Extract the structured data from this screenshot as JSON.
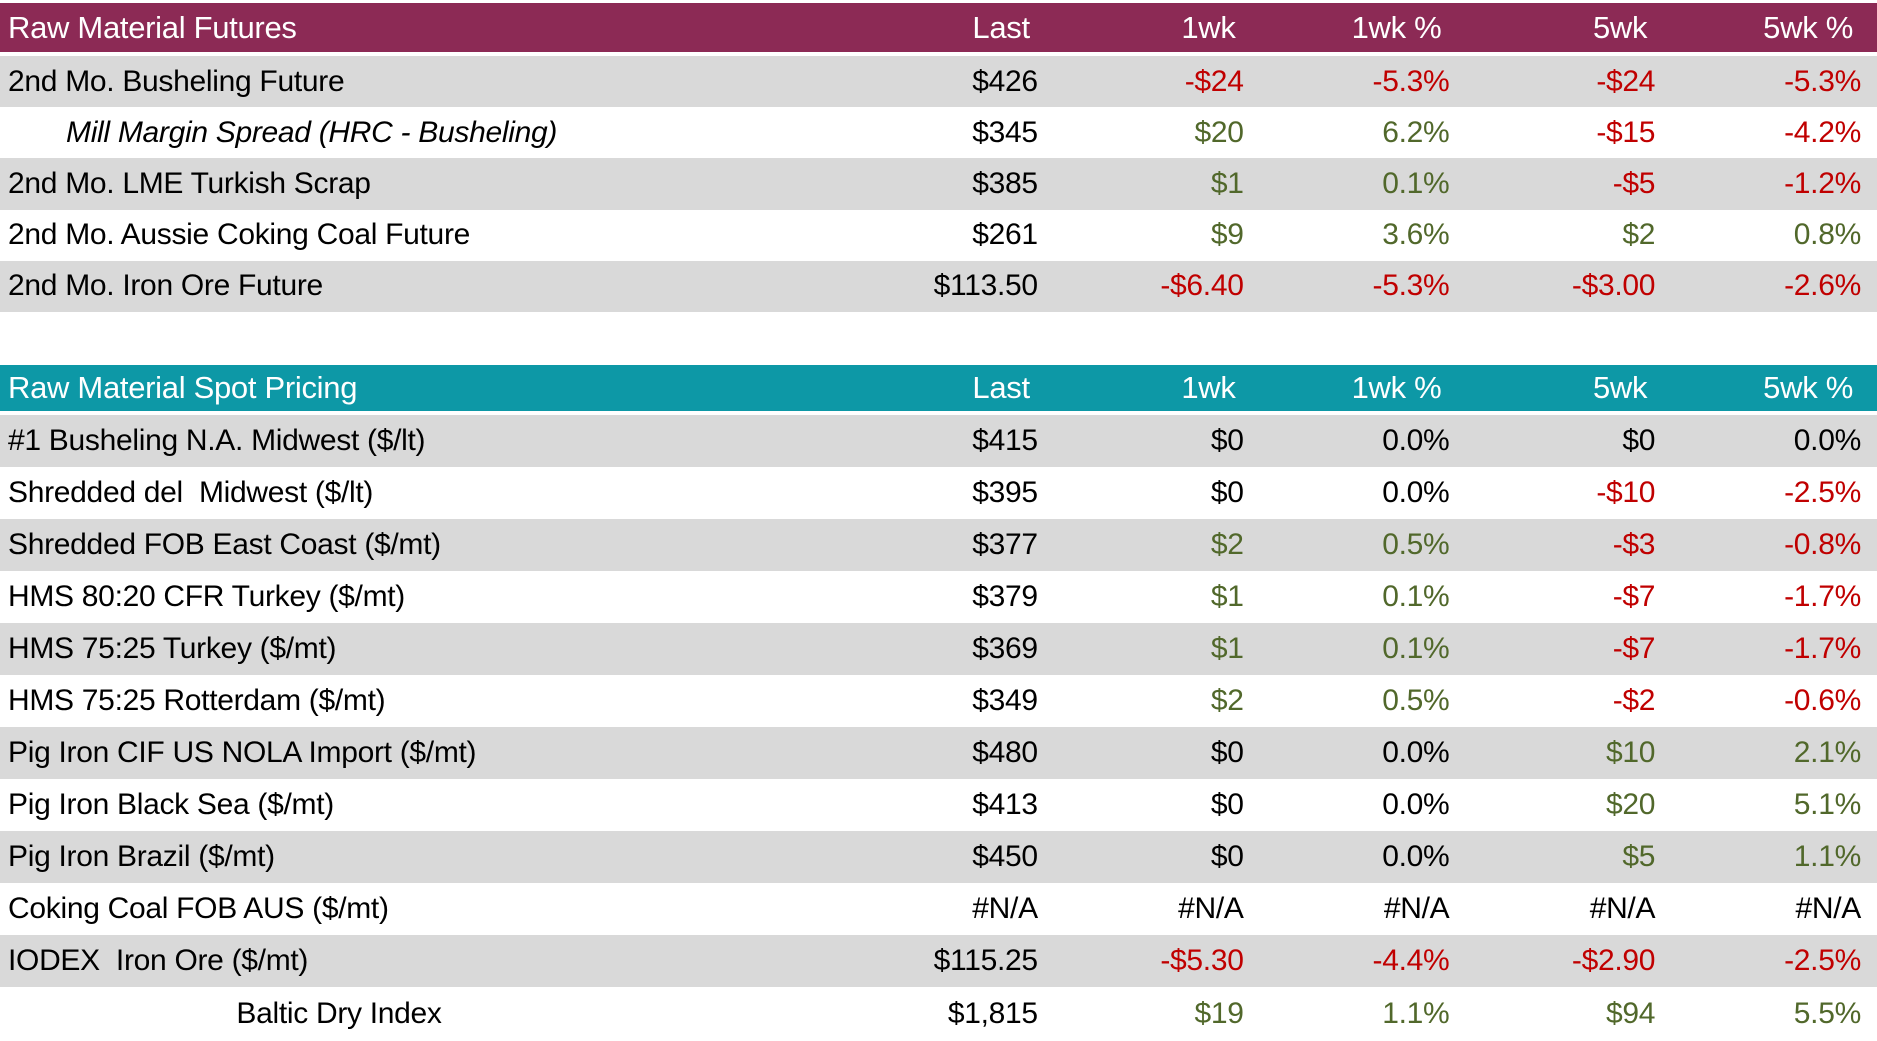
{
  "colors": {
    "futures_header_bg": "#8C2A55",
    "spot_header_bg": "#0D98A6",
    "alt_row_bg": "#D9D9D9",
    "positive_text": "#51682B",
    "negative_text": "#C00000",
    "neutral_text": "#000000",
    "header_text": "#FFFFFF"
  },
  "columns": [
    "Last",
    "1wk",
    "1wk %",
    "5wk",
    "5wk %"
  ],
  "futures": {
    "title": "Raw Material Futures",
    "rows": [
      {
        "label": "2nd Mo. Busheling Future",
        "style": "normal",
        "values": [
          {
            "t": "$426",
            "c": "plain"
          },
          {
            "t": "-$24",
            "c": "neg"
          },
          {
            "t": "-5.3%",
            "c": "neg"
          },
          {
            "t": "-$24",
            "c": "neg"
          },
          {
            "t": "-5.3%",
            "c": "neg"
          }
        ]
      },
      {
        "label": "Mill Margin Spread (HRC - Busheling)",
        "style": "indent-italic",
        "values": [
          {
            "t": "$345",
            "c": "plain"
          },
          {
            "t": "$20",
            "c": "pos"
          },
          {
            "t": "6.2%",
            "c": "pos"
          },
          {
            "t": "-$15",
            "c": "neg"
          },
          {
            "t": "-4.2%",
            "c": "neg"
          }
        ]
      },
      {
        "label": "2nd Mo. LME Turkish Scrap",
        "style": "normal",
        "values": [
          {
            "t": "$385",
            "c": "plain"
          },
          {
            "t": "$1",
            "c": "pos"
          },
          {
            "t": "0.1%",
            "c": "pos"
          },
          {
            "t": "-$5",
            "c": "neg"
          },
          {
            "t": "-1.2%",
            "c": "neg"
          }
        ]
      },
      {
        "label": "2nd Mo. Aussie Coking Coal Future",
        "style": "normal",
        "values": [
          {
            "t": "$261",
            "c": "plain"
          },
          {
            "t": "$9",
            "c": "pos"
          },
          {
            "t": "3.6%",
            "c": "pos"
          },
          {
            "t": "$2",
            "c": "pos"
          },
          {
            "t": "0.8%",
            "c": "pos"
          }
        ]
      },
      {
        "label": "2nd Mo. Iron Ore Future",
        "style": "normal",
        "values": [
          {
            "t": "$113.50",
            "c": "plain"
          },
          {
            "t": "-$6.40",
            "c": "neg"
          },
          {
            "t": "-5.3%",
            "c": "neg"
          },
          {
            "t": "-$3.00",
            "c": "neg"
          },
          {
            "t": "-2.6%",
            "c": "neg"
          }
        ]
      }
    ]
  },
  "spot": {
    "title": "Raw Material Spot Pricing",
    "rows": [
      {
        "label": "#1 Busheling N.A. Midwest ($/lt)",
        "style": "normal",
        "values": [
          {
            "t": "$415",
            "c": "plain"
          },
          {
            "t": "$0",
            "c": "plain"
          },
          {
            "t": "0.0%",
            "c": "plain"
          },
          {
            "t": "$0",
            "c": "plain"
          },
          {
            "t": "0.0%",
            "c": "plain"
          }
        ]
      },
      {
        "label": "Shredded del  Midwest ($/lt)",
        "style": "normal",
        "values": [
          {
            "t": "$395",
            "c": "plain"
          },
          {
            "t": "$0",
            "c": "plain"
          },
          {
            "t": "0.0%",
            "c": "plain"
          },
          {
            "t": "-$10",
            "c": "neg"
          },
          {
            "t": "-2.5%",
            "c": "neg"
          }
        ]
      },
      {
        "label": "Shredded FOB East Coast ($/mt)",
        "style": "normal",
        "values": [
          {
            "t": "$377",
            "c": "plain"
          },
          {
            "t": "$2",
            "c": "pos"
          },
          {
            "t": "0.5%",
            "c": "pos"
          },
          {
            "t": "-$3",
            "c": "neg"
          },
          {
            "t": "-0.8%",
            "c": "neg"
          }
        ]
      },
      {
        "label": "HMS 80:20 CFR Turkey ($/mt)",
        "style": "normal",
        "values": [
          {
            "t": "$379",
            "c": "plain"
          },
          {
            "t": "$1",
            "c": "pos"
          },
          {
            "t": "0.1%",
            "c": "pos"
          },
          {
            "t": "-$7",
            "c": "neg"
          },
          {
            "t": "-1.7%",
            "c": "neg"
          }
        ]
      },
      {
        "label": "HMS 75:25 Turkey ($/mt)",
        "style": "normal",
        "values": [
          {
            "t": "$369",
            "c": "plain"
          },
          {
            "t": "$1",
            "c": "pos"
          },
          {
            "t": "0.1%",
            "c": "pos"
          },
          {
            "t": "-$7",
            "c": "neg"
          },
          {
            "t": "-1.7%",
            "c": "neg"
          }
        ]
      },
      {
        "label": "HMS 75:25 Rotterdam ($/mt)",
        "style": "normal",
        "values": [
          {
            "t": "$349",
            "c": "plain"
          },
          {
            "t": "$2",
            "c": "pos"
          },
          {
            "t": "0.5%",
            "c": "pos"
          },
          {
            "t": "-$2",
            "c": "neg"
          },
          {
            "t": "-0.6%",
            "c": "neg"
          }
        ]
      },
      {
        "label": "Pig Iron CIF US NOLA Import ($/mt)",
        "style": "normal",
        "values": [
          {
            "t": "$480",
            "c": "plain"
          },
          {
            "t": "$0",
            "c": "plain"
          },
          {
            "t": "0.0%",
            "c": "plain"
          },
          {
            "t": "$10",
            "c": "pos"
          },
          {
            "t": "2.1%",
            "c": "pos"
          }
        ]
      },
      {
        "label": "Pig Iron Black Sea ($/mt)",
        "style": "normal",
        "values": [
          {
            "t": "$413",
            "c": "plain"
          },
          {
            "t": "$0",
            "c": "plain"
          },
          {
            "t": "0.0%",
            "c": "plain"
          },
          {
            "t": "$20",
            "c": "pos"
          },
          {
            "t": "5.1%",
            "c": "pos"
          }
        ]
      },
      {
        "label": "Pig Iron Brazil ($/mt)",
        "style": "normal",
        "values": [
          {
            "t": "$450",
            "c": "plain"
          },
          {
            "t": "$0",
            "c": "plain"
          },
          {
            "t": "0.0%",
            "c": "plain"
          },
          {
            "t": "$5",
            "c": "pos"
          },
          {
            "t": "1.1%",
            "c": "pos"
          }
        ]
      },
      {
        "label": "Coking Coal FOB AUS ($/mt)",
        "style": "normal",
        "values": [
          {
            "t": "#N/A",
            "c": "plain"
          },
          {
            "t": "#N/A",
            "c": "plain"
          },
          {
            "t": "#N/A",
            "c": "plain"
          },
          {
            "t": "#N/A",
            "c": "plain"
          },
          {
            "t": "#N/A",
            "c": "plain"
          }
        ]
      },
      {
        "label": "IODEX  Iron Ore ($/mt)",
        "style": "normal",
        "values": [
          {
            "t": "$115.25",
            "c": "plain"
          },
          {
            "t": "-$5.30",
            "c": "neg"
          },
          {
            "t": "-4.4%",
            "c": "neg"
          },
          {
            "t": "-$2.90",
            "c": "neg"
          },
          {
            "t": "-2.5%",
            "c": "neg"
          }
        ]
      },
      {
        "label": "Baltic Dry Index",
        "style": "center",
        "values": [
          {
            "t": "$1,815",
            "c": "plain"
          },
          {
            "t": "$19",
            "c": "pos"
          },
          {
            "t": "1.1%",
            "c": "pos"
          },
          {
            "t": "$94",
            "c": "pos"
          },
          {
            "t": "5.5%",
            "c": "pos"
          }
        ]
      }
    ]
  }
}
